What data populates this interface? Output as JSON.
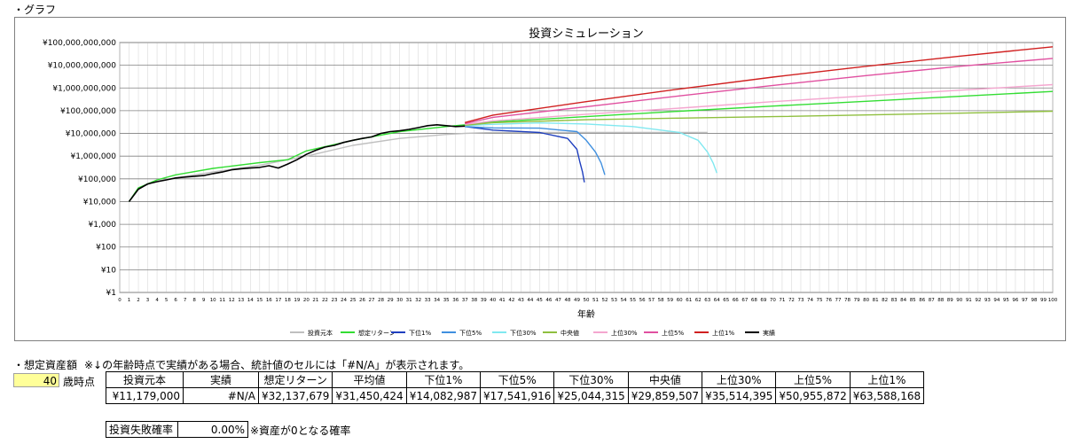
{
  "sections": {
    "graph_label": "・グラフ",
    "assets_label": "・想定資産額",
    "assets_note": "※↓の年齢時点で実績がある場合、統計値のセルには「#N/A」が表示されます。"
  },
  "age_input": {
    "value": "40",
    "suffix": "歳時点"
  },
  "stats_table": {
    "headers": [
      "投資元本",
      "実績",
      "想定リターン",
      "平均値",
      "下位1%",
      "下位5%",
      "下位30%",
      "中央値",
      "上位30%",
      "上位5%",
      "上位1%"
    ],
    "values": [
      "¥11,179,000",
      "#N/A",
      "¥32,137,679",
      "¥31,450,424",
      "¥14,082,987",
      "¥17,541,916",
      "¥25,044,315",
      "¥29,859,507",
      "¥35,514,395",
      "¥50,955,872",
      "¥63,588,168"
    ]
  },
  "fail_rate": {
    "label": "投資失敗確率",
    "value": "0.00%",
    "note": "※資産が0となる確率"
  },
  "chart_data": {
    "type": "line",
    "title": "投資シミュレーション",
    "xlabel": "年齢",
    "ylabel": "",
    "y_scale": "log",
    "xlim": [
      0,
      100
    ],
    "ylim": [
      1,
      100000000000
    ],
    "x_ticks": [
      0,
      1,
      2,
      3,
      4,
      5,
      6,
      7,
      8,
      9,
      10,
      11,
      12,
      13,
      14,
      15,
      16,
      17,
      18,
      19,
      20,
      21,
      22,
      23,
      24,
      25,
      26,
      27,
      28,
      29,
      30,
      31,
      32,
      33,
      34,
      35,
      36,
      37,
      38,
      39,
      40,
      41,
      42,
      43,
      44,
      45,
      46,
      47,
      48,
      49,
      50,
      51,
      52,
      53,
      54,
      55,
      56,
      57,
      58,
      59,
      60,
      61,
      62,
      63,
      64,
      65,
      66,
      67,
      68,
      69,
      70,
      71,
      72,
      73,
      74,
      75,
      76,
      77,
      78,
      79,
      80,
      81,
      82,
      83,
      84,
      85,
      86,
      87,
      88,
      89,
      90,
      91,
      92,
      93,
      94,
      95,
      96,
      97,
      98,
      99,
      100
    ],
    "y_tick_labels": [
      "¥1",
      "¥10",
      "¥100",
      "¥1,000",
      "¥10,000",
      "¥100,000",
      "¥1,000,000",
      "¥10,000,000",
      "¥100,000,000",
      "¥1,000,000,000",
      "¥10,000,000,000",
      "¥100,000,000,000"
    ],
    "grid": true,
    "legend_position": "bottom",
    "series": [
      {
        "name": "投資元本",
        "color": "#bfbfbf",
        "x": [
          1,
          2,
          4,
          6,
          10,
          15,
          20,
          25,
          30,
          35,
          37,
          40,
          45,
          50,
          55,
          60,
          63
        ],
        "y": [
          10000,
          40000,
          80000,
          110000,
          200000,
          400000,
          1000000,
          3000000,
          6000000,
          9000000,
          10000000,
          11000000,
          11000000,
          11000000,
          11000000,
          11000000,
          11000000
        ]
      },
      {
        "name": "想定リターン",
        "color": "#33dd33",
        "x": [
          1,
          2,
          4,
          6,
          10,
          15,
          18,
          20,
          25,
          30,
          35,
          37,
          40,
          45,
          50,
          60,
          70,
          80,
          90,
          100
        ],
        "y": [
          10000,
          40000,
          90000,
          150000,
          290000,
          520000,
          700000,
          1700000,
          5000000,
          12000000,
          20000000,
          24000000,
          32000000,
          42000000,
          55000000,
          95000000,
          160000000,
          260000000,
          430000000,
          700000000
        ]
      },
      {
        "name": "下位1%",
        "color": "#1f3fbf",
        "x": [
          37,
          40,
          45,
          48,
          49,
          49.3,
          49.6,
          49.8
        ],
        "y": [
          20000000,
          14000000,
          11000000,
          6000000,
          2000000,
          600000,
          200000,
          70000
        ]
      },
      {
        "name": "下位5%",
        "color": "#3f8fdf",
        "x": [
          37,
          40,
          45,
          49,
          50,
          51,
          51.6,
          52
        ],
        "y": [
          20000000,
          17500000,
          17000000,
          12000000,
          5000000,
          1500000,
          500000,
          150000
        ]
      },
      {
        "name": "下位30%",
        "color": "#80e8f0",
        "x": [
          37,
          40,
          45,
          50,
          55,
          60,
          62,
          63,
          63.6,
          64
        ],
        "y": [
          22000000,
          25000000,
          29000000,
          26000000,
          20000000,
          11000000,
          5000000,
          1500000,
          500000,
          180000
        ]
      },
      {
        "name": "中央値",
        "color": "#8fbf3f",
        "x": [
          37,
          40,
          50,
          60,
          70,
          80,
          90,
          100
        ],
        "y": [
          23000000,
          29800000,
          40000000,
          47000000,
          55000000,
          65000000,
          78000000,
          95000000
        ]
      },
      {
        "name": "上位30%",
        "color": "#f4a6cf",
        "x": [
          37,
          40,
          50,
          60,
          70,
          80,
          90,
          100
        ],
        "y": [
          25000000,
          35500000,
          70000000,
          130000000,
          250000000,
          450000000,
          800000000,
          1400000000
        ]
      },
      {
        "name": "上位5%",
        "color": "#e050a0",
        "x": [
          37,
          40,
          50,
          60,
          70,
          80,
          90,
          100
        ],
        "y": [
          27000000,
          51000000,
          150000000,
          450000000,
          1300000000,
          3500000000,
          9000000000,
          20000000000
        ]
      },
      {
        "name": "上位1%",
        "color": "#d02020",
        "x": [
          37,
          40,
          50,
          60,
          70,
          80,
          90,
          100
        ],
        "y": [
          30000000,
          63600000,
          250000000,
          900000000,
          3000000000,
          9000000000,
          25000000000,
          65000000000
        ]
      },
      {
        "name": "実績",
        "color": "#000000",
        "x": [
          1,
          2,
          3,
          4,
          5,
          6,
          7,
          8,
          9,
          10,
          11,
          12,
          13,
          14,
          15,
          16,
          17,
          18,
          19,
          20,
          21,
          22,
          23,
          24,
          25,
          26,
          27,
          28,
          29,
          30,
          31,
          32,
          33,
          34,
          35,
          36,
          37
        ],
        "y": [
          10000,
          35000,
          60000,
          75000,
          90000,
          110000,
          120000,
          130000,
          140000,
          170000,
          200000,
          250000,
          280000,
          300000,
          320000,
          380000,
          300000,
          450000,
          700000,
          1200000,
          1800000,
          2500000,
          3000000,
          4000000,
          5000000,
          6000000,
          7000000,
          10000000,
          12000000,
          13000000,
          15000000,
          18000000,
          22000000,
          24000000,
          22000000,
          20000000,
          21000000
        ]
      }
    ]
  }
}
